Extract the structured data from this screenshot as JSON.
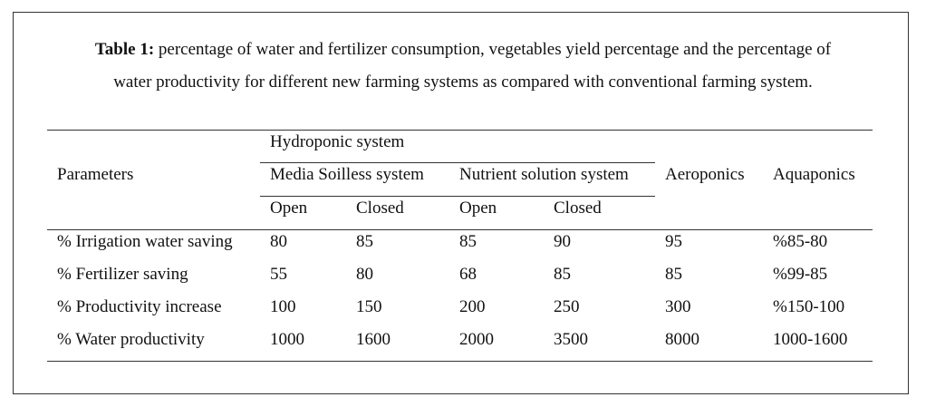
{
  "caption": {
    "label": "Table 1:",
    "line1": " percentage of water and fertilizer consumption, vegetables yield percentage and the percentage of",
    "line2": "water productivity for different new farming systems as compared with conventional farming system."
  },
  "table": {
    "header": {
      "parameters": "Parameters",
      "hydroponic": "Hydroponic system",
      "media_soilless": "Media Soilless system",
      "nutrient_solution": "Nutrient solution system",
      "open1": "Open",
      "closed1": "Closed",
      "open2": "Open",
      "closed2": "Closed",
      "aeroponics": "Aeroponics",
      "aquaponics": "Aquaponics"
    },
    "rows": [
      {
        "param": "% Irrigation water saving",
        "v1": "80",
        "v2": "85",
        "v3": "85",
        "v4": "90",
        "aero": "95",
        "aqua": "%85-80"
      },
      {
        "param": "% Fertilizer saving",
        "v1": "55",
        "v2": "80",
        "v3": "68",
        "v4": "85",
        "aero": "85",
        "aqua": "%99-85"
      },
      {
        "param": "% Productivity increase",
        "v1": "100",
        "v2": "150",
        "v3": "200",
        "v4": "250",
        "aero": "300",
        "aqua": "%150-100"
      },
      {
        "param": "% Water productivity",
        "v1": "1000",
        "v2": "1600",
        "v3": "2000",
        "v4": "3500",
        "aero": "8000",
        "aqua": "1000-1600"
      }
    ]
  }
}
